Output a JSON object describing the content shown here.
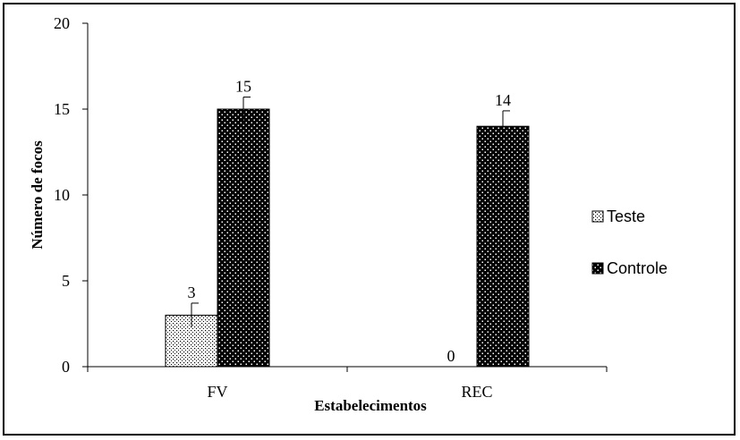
{
  "chart_data": {
    "type": "bar",
    "title": "",
    "xlabel": "Estabelecimentos",
    "ylabel": "Número de focos",
    "categories": [
      "FV",
      "REC"
    ],
    "series": [
      {
        "name": "Teste",
        "values": [
          3,
          0
        ],
        "errors": [
          0.7,
          0
        ],
        "data_labels": [
          "3",
          "0"
        ],
        "pattern": "fine-dots",
        "color": "#ffffff"
      },
      {
        "name": "Controle",
        "values": [
          15,
          14
        ],
        "errors": [
          0.7,
          0.9
        ],
        "data_labels": [
          "15",
          "14"
        ],
        "pattern": "checker-dots",
        "color": "#000000"
      }
    ],
    "ylim": [
      0,
      20
    ],
    "yticks": [
      "0",
      "5",
      "10",
      "15",
      "20"
    ],
    "grid": false,
    "legend_position": "right"
  }
}
